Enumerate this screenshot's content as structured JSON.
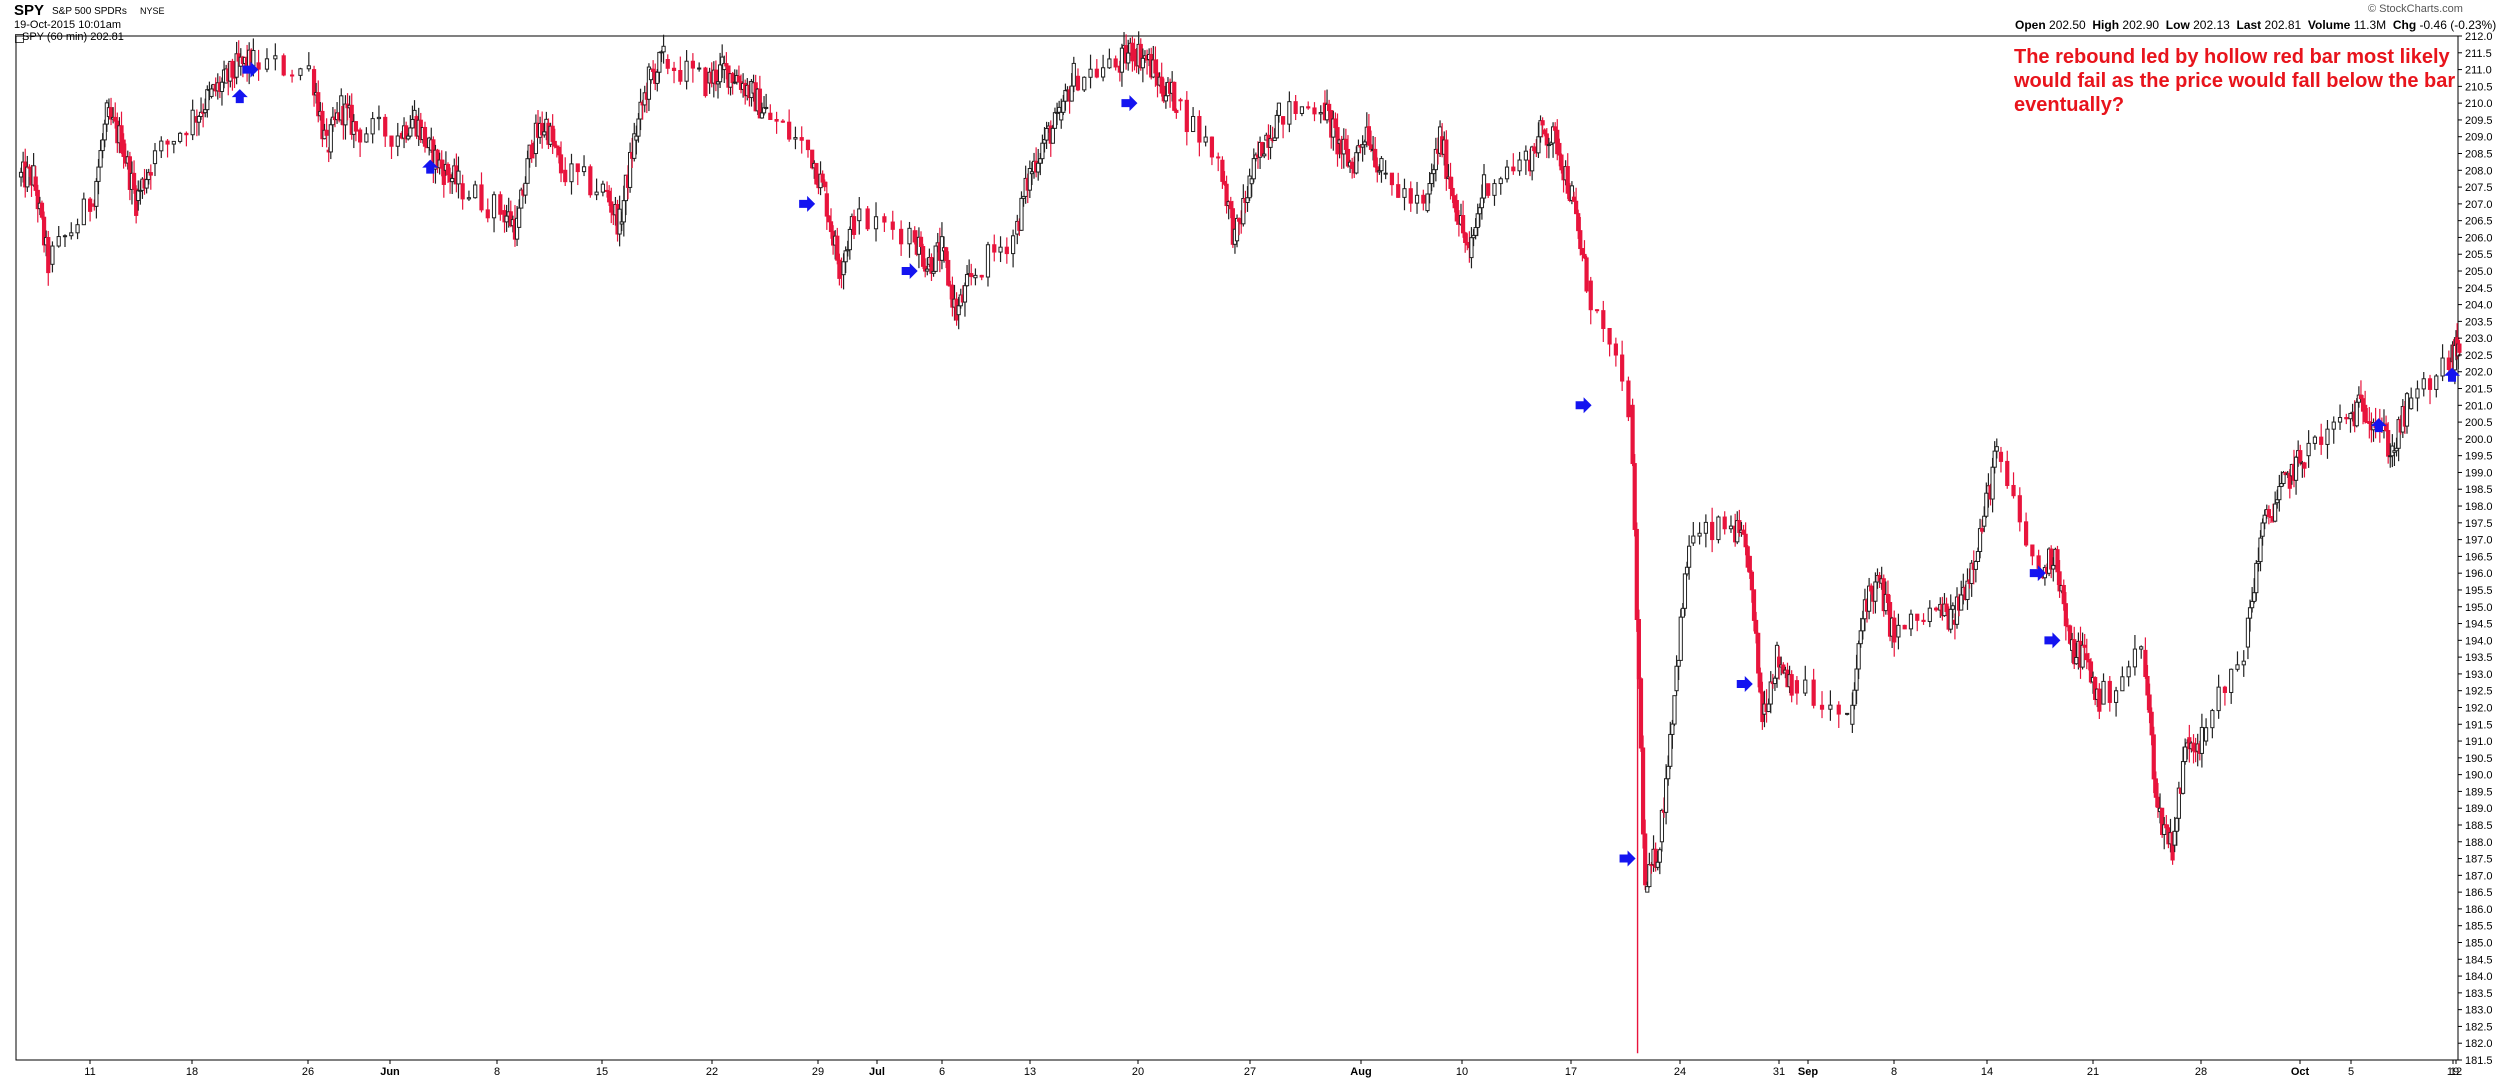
{
  "header": {
    "symbol": "SPY",
    "description": "S&P 500 SPDRs",
    "exchange": "NYSE",
    "date": "19-Oct-2015 10:01am",
    "legend": "SPY (60 min) 202.81",
    "brand": "© StockCharts.com",
    "quote": {
      "open_label": "Open",
      "open": "202.50",
      "high_label": "High",
      "high": "202.90",
      "low_label": "Low",
      "low": "202.13",
      "last_label": "Last",
      "last": "202.81",
      "volume_label": "Volume",
      "volume": "11.3M",
      "chg_label": "Chg",
      "chg": "-0.46 (-0.23%)"
    }
  },
  "annotation": "The rebound led by hollow red bar most likely would fail as the price would fall below the bar eventually?",
  "colors": {
    "up": "#222222",
    "down": "#e8143c",
    "arrow": "#1414f0",
    "annotation": "#e8141c",
    "grid_text": "#000000"
  },
  "chart_data": {
    "type": "candlestick",
    "title": "SPY (60 min) 202.81",
    "timeframe": "60 min",
    "x_range": [
      "2015-05-06",
      "2015-10-19"
    ],
    "ylim": [
      181.5,
      212.0
    ],
    "grid": false,
    "x_tick_labels": [
      "11",
      "18",
      "26",
      "Jun",
      "8",
      "15",
      "22",
      "29",
      "Jul",
      "6",
      "13",
      "20",
      "27",
      "Aug",
      "10",
      "17",
      "24",
      "31",
      "Sep",
      "8",
      "14",
      "21",
      "28",
      "Oct",
      "5",
      "12",
      "19"
    ],
    "y_tick_labels": [
      "181.5",
      "182.0",
      "182.5",
      "183.0",
      "183.5",
      "184.0",
      "184.5",
      "185.0",
      "185.5",
      "186.0",
      "186.5",
      "187.0",
      "187.5",
      "188.0",
      "188.5",
      "189.0",
      "189.5",
      "190.0",
      "190.5",
      "191.0",
      "191.5",
      "192.0",
      "192.5",
      "193.0",
      "193.5",
      "194.0",
      "194.5",
      "195.0",
      "195.5",
      "196.0",
      "196.5",
      "197.0",
      "197.5",
      "198.0",
      "198.5",
      "199.0",
      "199.5",
      "200.0",
      "200.5",
      "201.0",
      "201.5",
      "202.0",
      "202.5",
      "203.0",
      "203.5",
      "204.0",
      "204.5",
      "205.0",
      "205.5",
      "206.0",
      "206.5",
      "207.0",
      "207.5",
      "208.0",
      "208.5",
      "209.0",
      "209.5",
      "210.0",
      "210.5",
      "211.0",
      "211.5",
      "212.0"
    ],
    "price_path": [
      {
        "x": "2015-05-06",
        "y": 207.8
      },
      {
        "x": "2015-05-07",
        "y": 205.2
      },
      {
        "x": "2015-05-08",
        "y": 207.0
      },
      {
        "x": "2015-05-11",
        "y": 209.6
      },
      {
        "x": "2015-05-12",
        "y": 208.9
      },
      {
        "x": "2015-05-13",
        "y": 207.1
      },
      {
        "x": "2015-05-14",
        "y": 208.2
      },
      {
        "x": "2015-05-15",
        "y": 209.6
      },
      {
        "x": "2015-05-18",
        "y": 210.2
      },
      {
        "x": "2015-05-19",
        "y": 210.6
      },
      {
        "x": "2015-05-20",
        "y": 211.1
      },
      {
        "x": "2015-05-21",
        "y": 211.2
      },
      {
        "x": "2015-05-22",
        "y": 211.0
      },
      {
        "x": "2015-05-26",
        "y": 208.6
      },
      {
        "x": "2015-05-27",
        "y": 209.9
      },
      {
        "x": "2015-05-28",
        "y": 209.2
      },
      {
        "x": "2015-05-29",
        "y": 209.1
      },
      {
        "x": "2015-06-01",
        "y": 209.6
      },
      {
        "x": "2015-06-02",
        "y": 208.6
      },
      {
        "x": "2015-06-03",
        "y": 208.0
      },
      {
        "x": "2015-06-04",
        "y": 207.6
      },
      {
        "x": "2015-06-05",
        "y": 206.8
      },
      {
        "x": "2015-06-08",
        "y": 206.3
      },
      {
        "x": "2015-06-09",
        "y": 208.8
      },
      {
        "x": "2015-06-10",
        "y": 209.4
      },
      {
        "x": "2015-06-11",
        "y": 208.0
      },
      {
        "x": "2015-06-12",
        "y": 207.4
      },
      {
        "x": "2015-06-15",
        "y": 206.4
      },
      {
        "x": "2015-06-16",
        "y": 208.9
      },
      {
        "x": "2015-06-17",
        "y": 210.7
      },
      {
        "x": "2015-06-18",
        "y": 211.3
      },
      {
        "x": "2015-06-19",
        "y": 210.6
      },
      {
        "x": "2015-06-22",
        "y": 211.0
      },
      {
        "x": "2015-06-23",
        "y": 210.8
      },
      {
        "x": "2015-06-24",
        "y": 210.3
      },
      {
        "x": "2015-06-25",
        "y": 209.7
      },
      {
        "x": "2015-06-26",
        "y": 208.6
      },
      {
        "x": "2015-06-29",
        "y": 207.3
      },
      {
        "x": "2015-06-30",
        "y": 205.1
      },
      {
        "x": "2015-07-01",
        "y": 206.5
      },
      {
        "x": "2015-07-02",
        "y": 206.2
      },
      {
        "x": "2015-07-06",
        "y": 205.2
      },
      {
        "x": "2015-07-07",
        "y": 205.6
      },
      {
        "x": "2015-07-08",
        "y": 203.7
      },
      {
        "x": "2015-07-09",
        "y": 204.8
      },
      {
        "x": "2015-07-10",
        "y": 206.1
      },
      {
        "x": "2015-07-13",
        "y": 207.9
      },
      {
        "x": "2015-07-14",
        "y": 208.9
      },
      {
        "x": "2015-07-15",
        "y": 209.5
      },
      {
        "x": "2015-07-16",
        "y": 210.8
      },
      {
        "x": "2015-07-17",
        "y": 211.1
      },
      {
        "x": "2015-07-20",
        "y": 211.6
      },
      {
        "x": "2015-07-21",
        "y": 211.3
      },
      {
        "x": "2015-07-22",
        "y": 210.5
      },
      {
        "x": "2015-07-23",
        "y": 210.1
      },
      {
        "x": "2015-07-24",
        "y": 208.3
      },
      {
        "x": "2015-07-27",
        "y": 205.9
      },
      {
        "x": "2015-07-28",
        "y": 207.6
      },
      {
        "x": "2015-07-29",
        "y": 208.9
      },
      {
        "x": "2015-07-30",
        "y": 209.6
      },
      {
        "x": "2015-07-31",
        "y": 210.0
      },
      {
        "x": "2015-08-03",
        "y": 208.8
      },
      {
        "x": "2015-08-04",
        "y": 208.1
      },
      {
        "x": "2015-08-05",
        "y": 209.3
      },
      {
        "x": "2015-08-06",
        "y": 207.9
      },
      {
        "x": "2015-08-07",
        "y": 206.8
      },
      {
        "x": "2015-08-10",
        "y": 209.0
      },
      {
        "x": "2015-08-11",
        "y": 207.1
      },
      {
        "x": "2015-08-12",
        "y": 205.4
      },
      {
        "x": "2015-08-13",
        "y": 207.6
      },
      {
        "x": "2015-08-14",
        "y": 208.3
      },
      {
        "x": "2015-08-17",
        "y": 209.2
      },
      {
        "x": "2015-08-18",
        "y": 208.8
      },
      {
        "x": "2015-08-19",
        "y": 207.2
      },
      {
        "x": "2015-08-20",
        "y": 204.7
      },
      {
        "x": "2015-08-21",
        "y": 201.0
      },
      {
        "x": "2015-08-24",
        "y": 186.5
      },
      {
        "x": "2015-08-25",
        "y": 188.0
      },
      {
        "x": "2015-08-26",
        "y": 192.5
      },
      {
        "x": "2015-08-27",
        "y": 196.9
      },
      {
        "x": "2015-08-28",
        "y": 197.4
      },
      {
        "x": "2015-08-31",
        "y": 196.5
      },
      {
        "x": "2015-09-01",
        "y": 191.8
      },
      {
        "x": "2015-09-02",
        "y": 193.5
      },
      {
        "x": "2015-09-03",
        "y": 192.8
      },
      {
        "x": "2015-09-04",
        "y": 191.5
      },
      {
        "x": "2015-09-08",
        "y": 195.2
      },
      {
        "x": "2015-09-09",
        "y": 195.7
      },
      {
        "x": "2015-09-10",
        "y": 194.1
      },
      {
        "x": "2015-09-11",
        "y": 194.9
      },
      {
        "x": "2015-09-14",
        "y": 194.6
      },
      {
        "x": "2015-09-15",
        "y": 195.8
      },
      {
        "x": "2015-09-16",
        "y": 197.4
      },
      {
        "x": "2015-09-17",
        "y": 199.6
      },
      {
        "x": "2015-09-18",
        "y": 195.9
      },
      {
        "x": "2015-09-21",
        "y": 196.7
      },
      {
        "x": "2015-09-22",
        "y": 193.7
      },
      {
        "x": "2015-09-23",
        "y": 193.6
      },
      {
        "x": "2015-09-24",
        "y": 192.1
      },
      {
        "x": "2015-09-25",
        "y": 193.7
      },
      {
        "x": "2015-09-28",
        "y": 188.9
      },
      {
        "x": "2015-09-29",
        "y": 187.9
      },
      {
        "x": "2015-09-30",
        "y": 191.1
      },
      {
        "x": "2015-10-01",
        "y": 191.0
      },
      {
        "x": "2015-10-02",
        "y": 193.8
      },
      {
        "x": "2015-10-05",
        "y": 197.1
      },
      {
        "x": "2015-10-06",
        "y": 198.1
      },
      {
        "x": "2015-10-07",
        "y": 198.9
      },
      {
        "x": "2015-10-08",
        "y": 199.5
      },
      {
        "x": "2015-10-09",
        "y": 200.6
      },
      {
        "x": "2015-10-12",
        "y": 201.0
      },
      {
        "x": "2015-10-13",
        "y": 200.5
      },
      {
        "x": "2015-10-14",
        "y": 199.6
      },
      {
        "x": "2015-10-15",
        "y": 200.9
      },
      {
        "x": "2015-10-16",
        "y": 202.3
      },
      {
        "x": "2015-10-19",
        "y": 202.8
      }
    ],
    "arrow_markers": [
      {
        "x": "2015-05-21",
        "y": 210.3,
        "direction": "up"
      },
      {
        "x": "2015-05-22",
        "y": 211.0,
        "direction": "right"
      },
      {
        "x": "2015-06-03",
        "y": 208.2,
        "direction": "up"
      },
      {
        "x": "2015-06-29",
        "y": 207.0,
        "direction": "right"
      },
      {
        "x": "2015-07-06",
        "y": 205.0,
        "direction": "right"
      },
      {
        "x": "2015-07-21",
        "y": 210.0,
        "direction": "right"
      },
      {
        "x": "2015-08-21",
        "y": 201.0,
        "direction": "right"
      },
      {
        "x": "2015-08-24",
        "y": 187.5,
        "direction": "right"
      },
      {
        "x": "2015-09-01",
        "y": 192.7,
        "direction": "right"
      },
      {
        "x": "2015-09-21",
        "y": 196.0,
        "direction": "right"
      },
      {
        "x": "2015-09-22",
        "y": 194.0,
        "direction": "right"
      },
      {
        "x": "2015-10-14",
        "y": 200.5,
        "direction": "up"
      },
      {
        "x": "2015-10-19",
        "y": 202.0,
        "direction": "up"
      }
    ]
  }
}
